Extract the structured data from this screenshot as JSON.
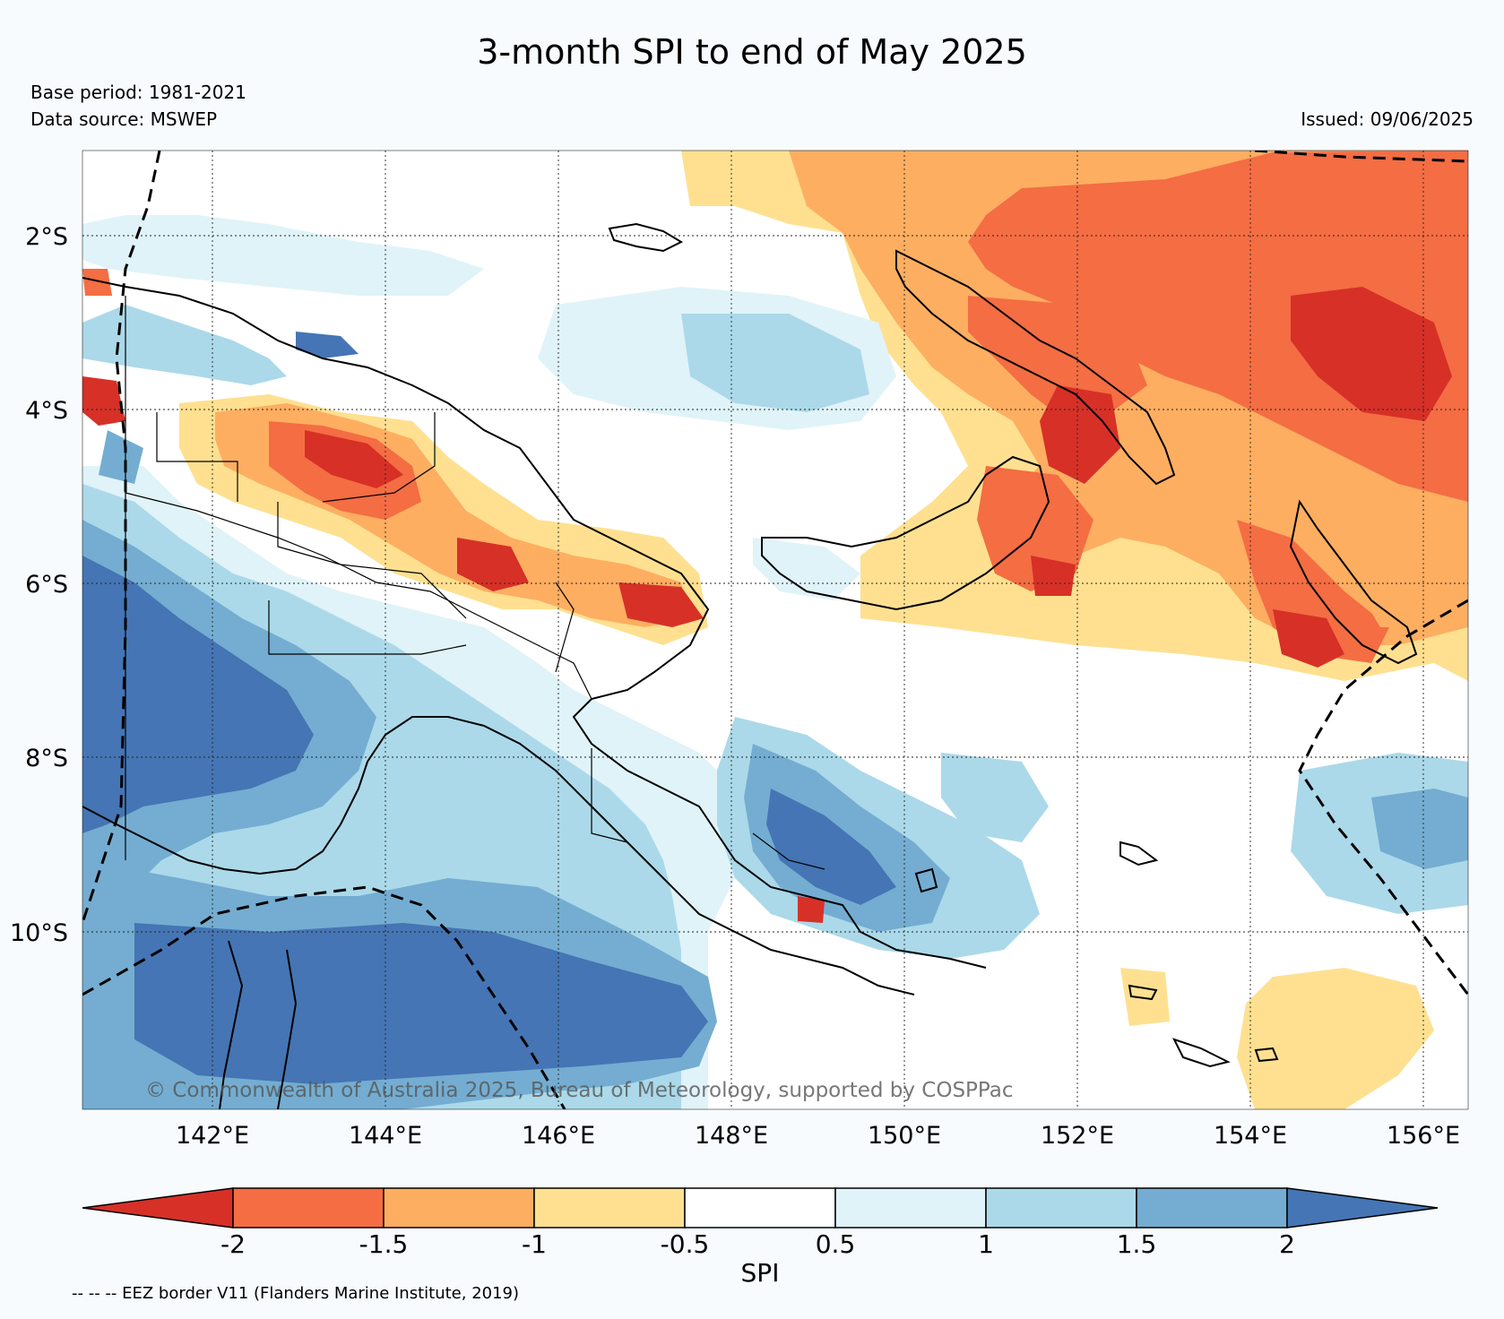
{
  "header": {
    "title": "3-month SPI to end of May 2025",
    "base_period": "Base period: 1981-2021",
    "data_source": "Data source: MSWEP",
    "issued": "Issued: 09/06/2025"
  },
  "map": {
    "lat_labels": [
      "2°S",
      "4°S",
      "6°S",
      "8°S",
      "10°S"
    ],
    "lon_labels": [
      "142°E",
      "144°E",
      "146°E",
      "148°E",
      "150°E",
      "152°E",
      "154°E",
      "156°E"
    ],
    "watermark": "© Commonwealth of Australia 2025, Bureau of Meteorology, supported by COSPPac"
  },
  "colorbar": {
    "label": "SPI",
    "ticks": [
      "-2",
      "-1.5",
      "-1",
      "-0.5",
      "0.5",
      "1",
      "1.5",
      "2"
    ],
    "colors": [
      "#d73027",
      "#f46d43",
      "#fdae61",
      "#fee090",
      "#ffffff",
      "#e0f3f8",
      "#abd9e9",
      "#74add1",
      "#4575b4"
    ]
  },
  "footnote": "-- -- -- EEZ border V11 (Flanders Marine Institute, 2019)"
}
